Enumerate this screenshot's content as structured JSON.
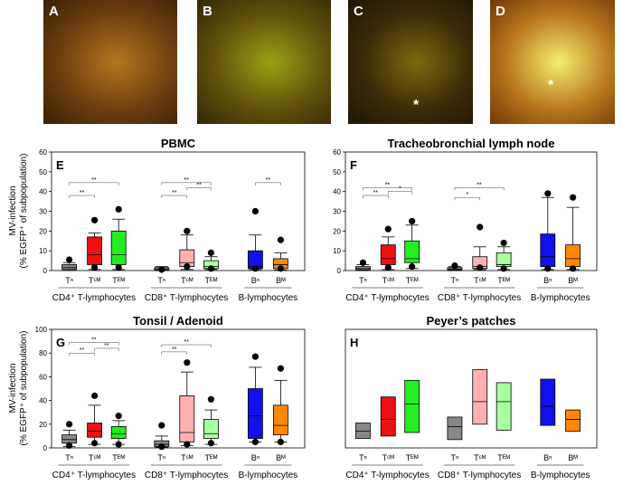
{
  "photos": [
    {
      "letter": "A",
      "colors": [
        "#b57620",
        "#6d3f0f",
        "#3a1e05"
      ]
    },
    {
      "letter": "B",
      "colors": [
        "#9ca014",
        "#60500c",
        "#332606"
      ]
    },
    {
      "letter": "C",
      "colors": [
        "#7d6a10",
        "#3c2a08",
        "#1e1505"
      ],
      "star": "*"
    },
    {
      "letter": "D",
      "colors": [
        "#f3f070",
        "#b9761c",
        "#6f3808"
      ],
      "star": "*"
    }
  ],
  "y_axis_label_line1": "MV-infection",
  "y_axis_label_line2": "(% EGFP⁺ of subpopulation)",
  "colors": {
    "Tn": "#888888",
    "TCM_cd4": "#ee1111",
    "TEM_cd4": "#22ee22",
    "TCM_cd8": "#ffb0b0",
    "TEM_cd8": "#a8ffa0",
    "Bn": "#1111ee",
    "BM": "#ff8800"
  },
  "chart_data": [
    {
      "type": "box",
      "panel_letter": "E",
      "title": "PBMC",
      "ylim": [
        0,
        60
      ],
      "yticks": [
        0,
        10,
        20,
        30,
        40,
        50,
        60
      ],
      "groups": [
        {
          "label": "CD4⁺ T-lymphocytes",
          "boxes": [
            {
              "label": "Tⁿ",
              "color_key": "Tn",
              "whisker_low": 0,
              "q1": 0.5,
              "median": 1.5,
              "q3": 3,
              "whisker_high": 4,
              "outliers": [
                5.5
              ]
            },
            {
              "label": "Tᶜᴹ",
              "color_key": "TCM_cd4",
              "whisker_low": 0.5,
              "q1": 3,
              "median": 8,
              "q3": 17,
              "whisker_high": 19,
              "outliers": [
                1.5,
                25.5
              ]
            },
            {
              "label": "Tᴱᴹ",
              "color_key": "TEM_cd4",
              "whisker_low": 0.5,
              "q1": 3,
              "median": 8,
              "q3": 20,
              "whisker_high": 26,
              "outliers": [
                1.5,
                31
              ]
            }
          ]
        },
        {
          "label": "CD8⁺ T-lymphocytes",
          "boxes": [
            {
              "label": "Tⁿ",
              "color_key": "Tn",
              "whisker_low": 0,
              "q1": 0.2,
              "median": 0.8,
              "q3": 1.5,
              "whisker_high": 2,
              "outliers": [
                0.5
              ]
            },
            {
              "label": "Tᶜᴹ",
              "color_key": "TCM_cd8",
              "whisker_low": 0.5,
              "q1": 2,
              "median": 4,
              "q3": 10.5,
              "whisker_high": 18,
              "outliers": [
                2,
                20
              ]
            },
            {
              "label": "Tᴱᴹ",
              "color_key": "TEM_cd8",
              "whisker_low": 0.5,
              "q1": 1,
              "median": 2,
              "q3": 5,
              "whisker_high": 7,
              "outliers": [
                1,
                9
              ]
            }
          ]
        },
        {
          "label": "B-lymphocytes",
          "boxes": [
            {
              "label": "Bⁿ",
              "color_key": "Bn",
              "whisker_low": 0.5,
              "q1": 1,
              "median": 2,
              "q3": 10,
              "whisker_high": 18,
              "outliers": [
                1,
                30
              ]
            },
            {
              "label": "Bᴹ",
              "color_key": "BM",
              "whisker_low": 0.3,
              "q1": 1,
              "median": 3,
              "q3": 6,
              "whisker_high": 9,
              "outliers": [
                1,
                15.5
              ]
            }
          ]
        }
      ],
      "significance": [
        {
          "from": 0,
          "to": 1,
          "y": 38,
          "label": "**"
        },
        {
          "from": 0,
          "to": 2,
          "y": 44.5,
          "label": "**"
        },
        {
          "from": 3,
          "to": 4,
          "y": 38,
          "label": "**"
        },
        {
          "from": 3,
          "to": 5,
          "y": 44.5,
          "label": "**"
        },
        {
          "from": 4,
          "to": 5,
          "y": 42,
          "label": "**"
        },
        {
          "from": 6,
          "to": 7,
          "y": 44.5,
          "label": "**"
        }
      ]
    },
    {
      "type": "box",
      "panel_letter": "F",
      "title": "Tracheobronchial lymph node",
      "ylim": [
        0,
        60
      ],
      "yticks": [
        0,
        10,
        20,
        30,
        40,
        50,
        60
      ],
      "groups": [
        {
          "label": "CD4⁺ T-lymphocytes",
          "boxes": [
            {
              "label": "Tⁿ",
              "color_key": "Tn",
              "whisker_low": 0,
              "q1": 0.3,
              "median": 1,
              "q3": 2,
              "whisker_high": 3,
              "outliers": [
                4
              ]
            },
            {
              "label": "Tᶜᴹ",
              "color_key": "TCM_cd4",
              "whisker_low": 0.5,
              "q1": 3,
              "median": 6,
              "q3": 13,
              "whisker_high": 17,
              "outliers": [
                1.5,
                21
              ]
            },
            {
              "label": "Tᴱᴹ",
              "color_key": "TEM_cd4",
              "whisker_low": 1,
              "q1": 4,
              "median": 6,
              "q3": 15,
              "whisker_high": 23,
              "outliers": [
                2,
                25
              ]
            }
          ]
        },
        {
          "label": "CD8⁺ T-lymphocytes",
          "boxes": [
            {
              "label": "Tⁿ",
              "color_key": "Tn",
              "whisker_low": 0,
              "q1": 0.3,
              "median": 0.8,
              "q3": 1.5,
              "whisker_high": 2,
              "outliers": [
                2.5
              ]
            },
            {
              "label": "Tᶜᴹ",
              "color_key": "TCM_cd8",
              "whisker_low": 0.5,
              "q1": 1,
              "median": 2,
              "q3": 7,
              "whisker_high": 12,
              "outliers": [
                1.5,
                22
              ]
            },
            {
              "label": "Tᴱᴹ",
              "color_key": "TEM_cd8",
              "whisker_low": 0.5,
              "q1": 2,
              "median": 3,
              "q3": 9,
              "whisker_high": 12,
              "outliers": [
                1,
                14
              ]
            }
          ]
        },
        {
          "label": "B-lymphocytes",
          "boxes": [
            {
              "label": "Bⁿ",
              "color_key": "Bn",
              "whisker_low": 0.5,
              "q1": 2,
              "median": 7,
              "q3": 18.5,
              "whisker_high": 37,
              "outliers": [
                1,
                39
              ]
            },
            {
              "label": "Bᴹ",
              "color_key": "BM",
              "whisker_low": 0.5,
              "q1": 2,
              "median": 6,
              "q3": 13,
              "whisker_high": 32,
              "outliers": [
                1,
                37
              ]
            }
          ]
        }
      ],
      "significance": [
        {
          "from": 0,
          "to": 1,
          "y": 38,
          "label": "**"
        },
        {
          "from": 0,
          "to": 2,
          "y": 42,
          "label": "**"
        },
        {
          "from": 1,
          "to": 2,
          "y": 40,
          "label": "*"
        },
        {
          "from": 3,
          "to": 4,
          "y": 37,
          "label": "*"
        },
        {
          "from": 3,
          "to": 5,
          "y": 42,
          "label": "**"
        }
      ]
    },
    {
      "type": "box",
      "panel_letter": "G",
      "title": "Tonsil / Adenoid",
      "ylim": [
        0,
        100
      ],
      "yticks": [
        0,
        20,
        40,
        60,
        80,
        100
      ],
      "groups": [
        {
          "label": "CD4⁺ T-lymphocytes",
          "boxes": [
            {
              "label": "Tⁿ",
              "color_key": "Tn",
              "whisker_low": 1,
              "q1": 4,
              "median": 7,
              "q3": 11,
              "whisker_high": 15,
              "outliers": [
                2,
                20
              ]
            },
            {
              "label": "Tᶜᴹ",
              "color_key": "TCM_cd4",
              "whisker_low": 3,
              "q1": 9,
              "median": 14,
              "q3": 21,
              "whisker_high": 36,
              "outliers": [
                4,
                44
              ]
            },
            {
              "label": "Tᴱᴹ",
              "color_key": "TEM_cd4",
              "whisker_low": 3,
              "q1": 8,
              "median": 12,
              "q3": 18,
              "whisker_high": 23,
              "outliers": [
                3,
                27
              ]
            }
          ]
        },
        {
          "label": "CD8⁺ T-lymphocytes",
          "boxes": [
            {
              "label": "Tⁿ",
              "color_key": "Tn",
              "whisker_low": 0.5,
              "q1": 1,
              "median": 3,
              "q3": 6,
              "whisker_high": 10,
              "outliers": [
                1,
                19
              ]
            },
            {
              "label": "Tᶜᴹ",
              "color_key": "TCM_cd8",
              "whisker_low": 2,
              "q1": 5,
              "median": 13,
              "q3": 44,
              "whisker_high": 64,
              "outliers": [
                3,
                72
              ]
            },
            {
              "label": "Tᴱᴹ",
              "color_key": "TEM_cd8",
              "whisker_low": 3,
              "q1": 8,
              "median": 12,
              "q3": 24,
              "whisker_high": 32,
              "outliers": [
                4,
                41
              ]
            }
          ]
        },
        {
          "label": "B-lymphocytes",
          "boxes": [
            {
              "label": "Bⁿ",
              "color_key": "Bn",
              "whisker_low": 5,
              "q1": 8,
              "median": 27,
              "q3": 50,
              "whisker_high": 68,
              "outliers": [
                5,
                77
              ]
            },
            {
              "label": "Bᴹ",
              "color_key": "BM",
              "whisker_low": 5,
              "q1": 11,
              "median": 19,
              "q3": 36,
              "whisker_high": 57,
              "outliers": [
                5,
                67
              ]
            }
          ]
        }
      ],
      "significance": [
        {
          "from": 0,
          "to": 1,
          "y": 80,
          "label": "**"
        },
        {
          "from": 0,
          "to": 2,
          "y": 89,
          "label": "**"
        },
        {
          "from": 1,
          "to": 2,
          "y": 84,
          "label": "**"
        },
        {
          "from": 3,
          "to": 4,
          "y": 81,
          "label": "**"
        },
        {
          "from": 3,
          "to": 5,
          "y": 87,
          "label": "**"
        }
      ]
    },
    {
      "type": "box",
      "panel_letter": "H",
      "title": "Peyer’s patches",
      "ylim": [
        0,
        100
      ],
      "groups": [
        {
          "label": "CD4⁺ T-lymphocytes",
          "boxes": [
            {
              "label": "Tⁿ",
              "color_key": "Tn",
              "q1": 8,
              "median": 14,
              "q3": 21
            },
            {
              "label": "Tᶜᴹ",
              "color_key": "TCM_cd4",
              "q1": 10,
              "median": 24,
              "q3": 43
            },
            {
              "label": "Tᴱᴹ",
              "color_key": "TEM_cd4",
              "q1": 13,
              "median": 37,
              "q3": 57
            }
          ]
        },
        {
          "label": "CD8⁺ T-lymphocytes",
          "boxes": [
            {
              "label": "Tⁿ",
              "color_key": "Tn",
              "q1": 7,
              "median": 18,
              "q3": 26
            },
            {
              "label": "Tᶜᴹ",
              "color_key": "TCM_cd8",
              "q1": 20,
              "median": 39,
              "q3": 66
            },
            {
              "label": "Tᴱᴹ",
              "color_key": "TEM_cd8",
              "q1": 15,
              "median": 39,
              "q3": 55
            }
          ]
        },
        {
          "label": "B-lymphocytes",
          "boxes": [
            {
              "label": "Bⁿ",
              "color_key": "Bn",
              "q1": 19,
              "median": 35,
              "q3": 58
            },
            {
              "label": "Bᴹ",
              "color_key": "BM",
              "q1": 14,
              "median": 24,
              "q3": 32
            }
          ]
        }
      ],
      "significance": []
    }
  ]
}
